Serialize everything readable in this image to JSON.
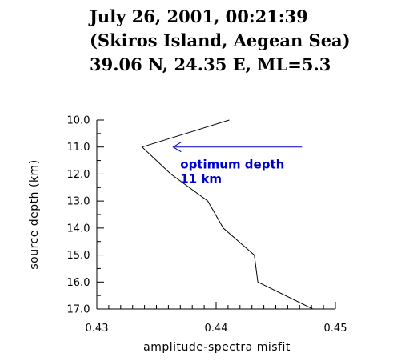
{
  "header": {
    "line1": "July 26, 2001, 00:21:39",
    "line2": "(Skiros Island, Aegean Sea)",
    "line3": "39.06 N, 24.35 E, ML=5.3"
  },
  "colors": {
    "curve": "#000000",
    "annotation": "#0000cc"
  },
  "chart_data": {
    "type": "line",
    "title": "",
    "xlabel": "amplitude-spectra misfit",
    "ylabel": "source depth (km)",
    "xlim": [
      0.43,
      0.45
    ],
    "ylim": [
      17.0,
      10.0
    ],
    "y_inverted": true,
    "x_ticks": [
      0.43,
      0.44,
      0.45
    ],
    "x_tick_labels": [
      "0.43",
      "0.44",
      "0.45"
    ],
    "y_ticks": [
      10,
      11,
      12,
      13,
      14,
      15,
      16,
      17
    ],
    "y_tick_labels": [
      "10.0",
      "11.0",
      "12.0",
      "13.0",
      "14.0",
      "15.0",
      "16.0",
      "17.0"
    ],
    "grid": false,
    "series": [
      {
        "x": [
          0.4411,
          0.4338,
          0.4362,
          0.4393,
          0.4406,
          0.4432,
          0.4435,
          0.4481
        ],
        "y": [
          10,
          11,
          12,
          13,
          14,
          15,
          16,
          17
        ]
      }
    ],
    "annotation": {
      "text_line1": "optimum depth",
      "text_line2": "11 km",
      "arrow_from": [
        0.4472,
        11.0
      ],
      "arrow_to": [
        0.4364,
        11.0
      ],
      "text_anchor": [
        0.437,
        11.8
      ]
    }
  }
}
